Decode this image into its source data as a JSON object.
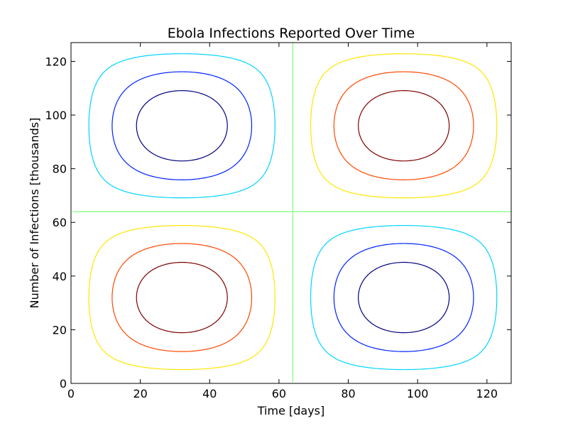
{
  "chart_data": {
    "type": "contour",
    "title": "Ebola Infections Reported Over Time",
    "xlabel": "Time [days]",
    "ylabel": "Number of Infections [thousands]",
    "xlim": [
      0,
      127
    ],
    "ylim": [
      0,
      127
    ],
    "xticks": [
      0,
      20,
      40,
      60,
      80,
      100,
      120
    ],
    "yticks": [
      0,
      20,
      40,
      60,
      80,
      100,
      120
    ],
    "x_tick_labels": [
      "0",
      "20",
      "40",
      "60",
      "80",
      "100",
      "120"
    ],
    "y_tick_labels": [
      "0",
      "20",
      "40",
      "60",
      "80",
      "100",
      "120"
    ],
    "grid": false,
    "legend": "none",
    "field": "sin(2*pi*x/128) * sin(2*pi*y/128) contour levels, period 128",
    "contour_levels": [
      {
        "level": -0.8,
        "color": "#00007f"
      },
      {
        "level": -0.55,
        "color": "#0022ff"
      },
      {
        "level": -0.25,
        "color": "#00d4ff"
      },
      {
        "level": 0.0,
        "color": "#7dff7a"
      },
      {
        "level": 0.25,
        "color": "#ffe600"
      },
      {
        "level": 0.55,
        "color": "#ff4700"
      },
      {
        "level": 0.8,
        "color": "#7f0000"
      }
    ]
  }
}
